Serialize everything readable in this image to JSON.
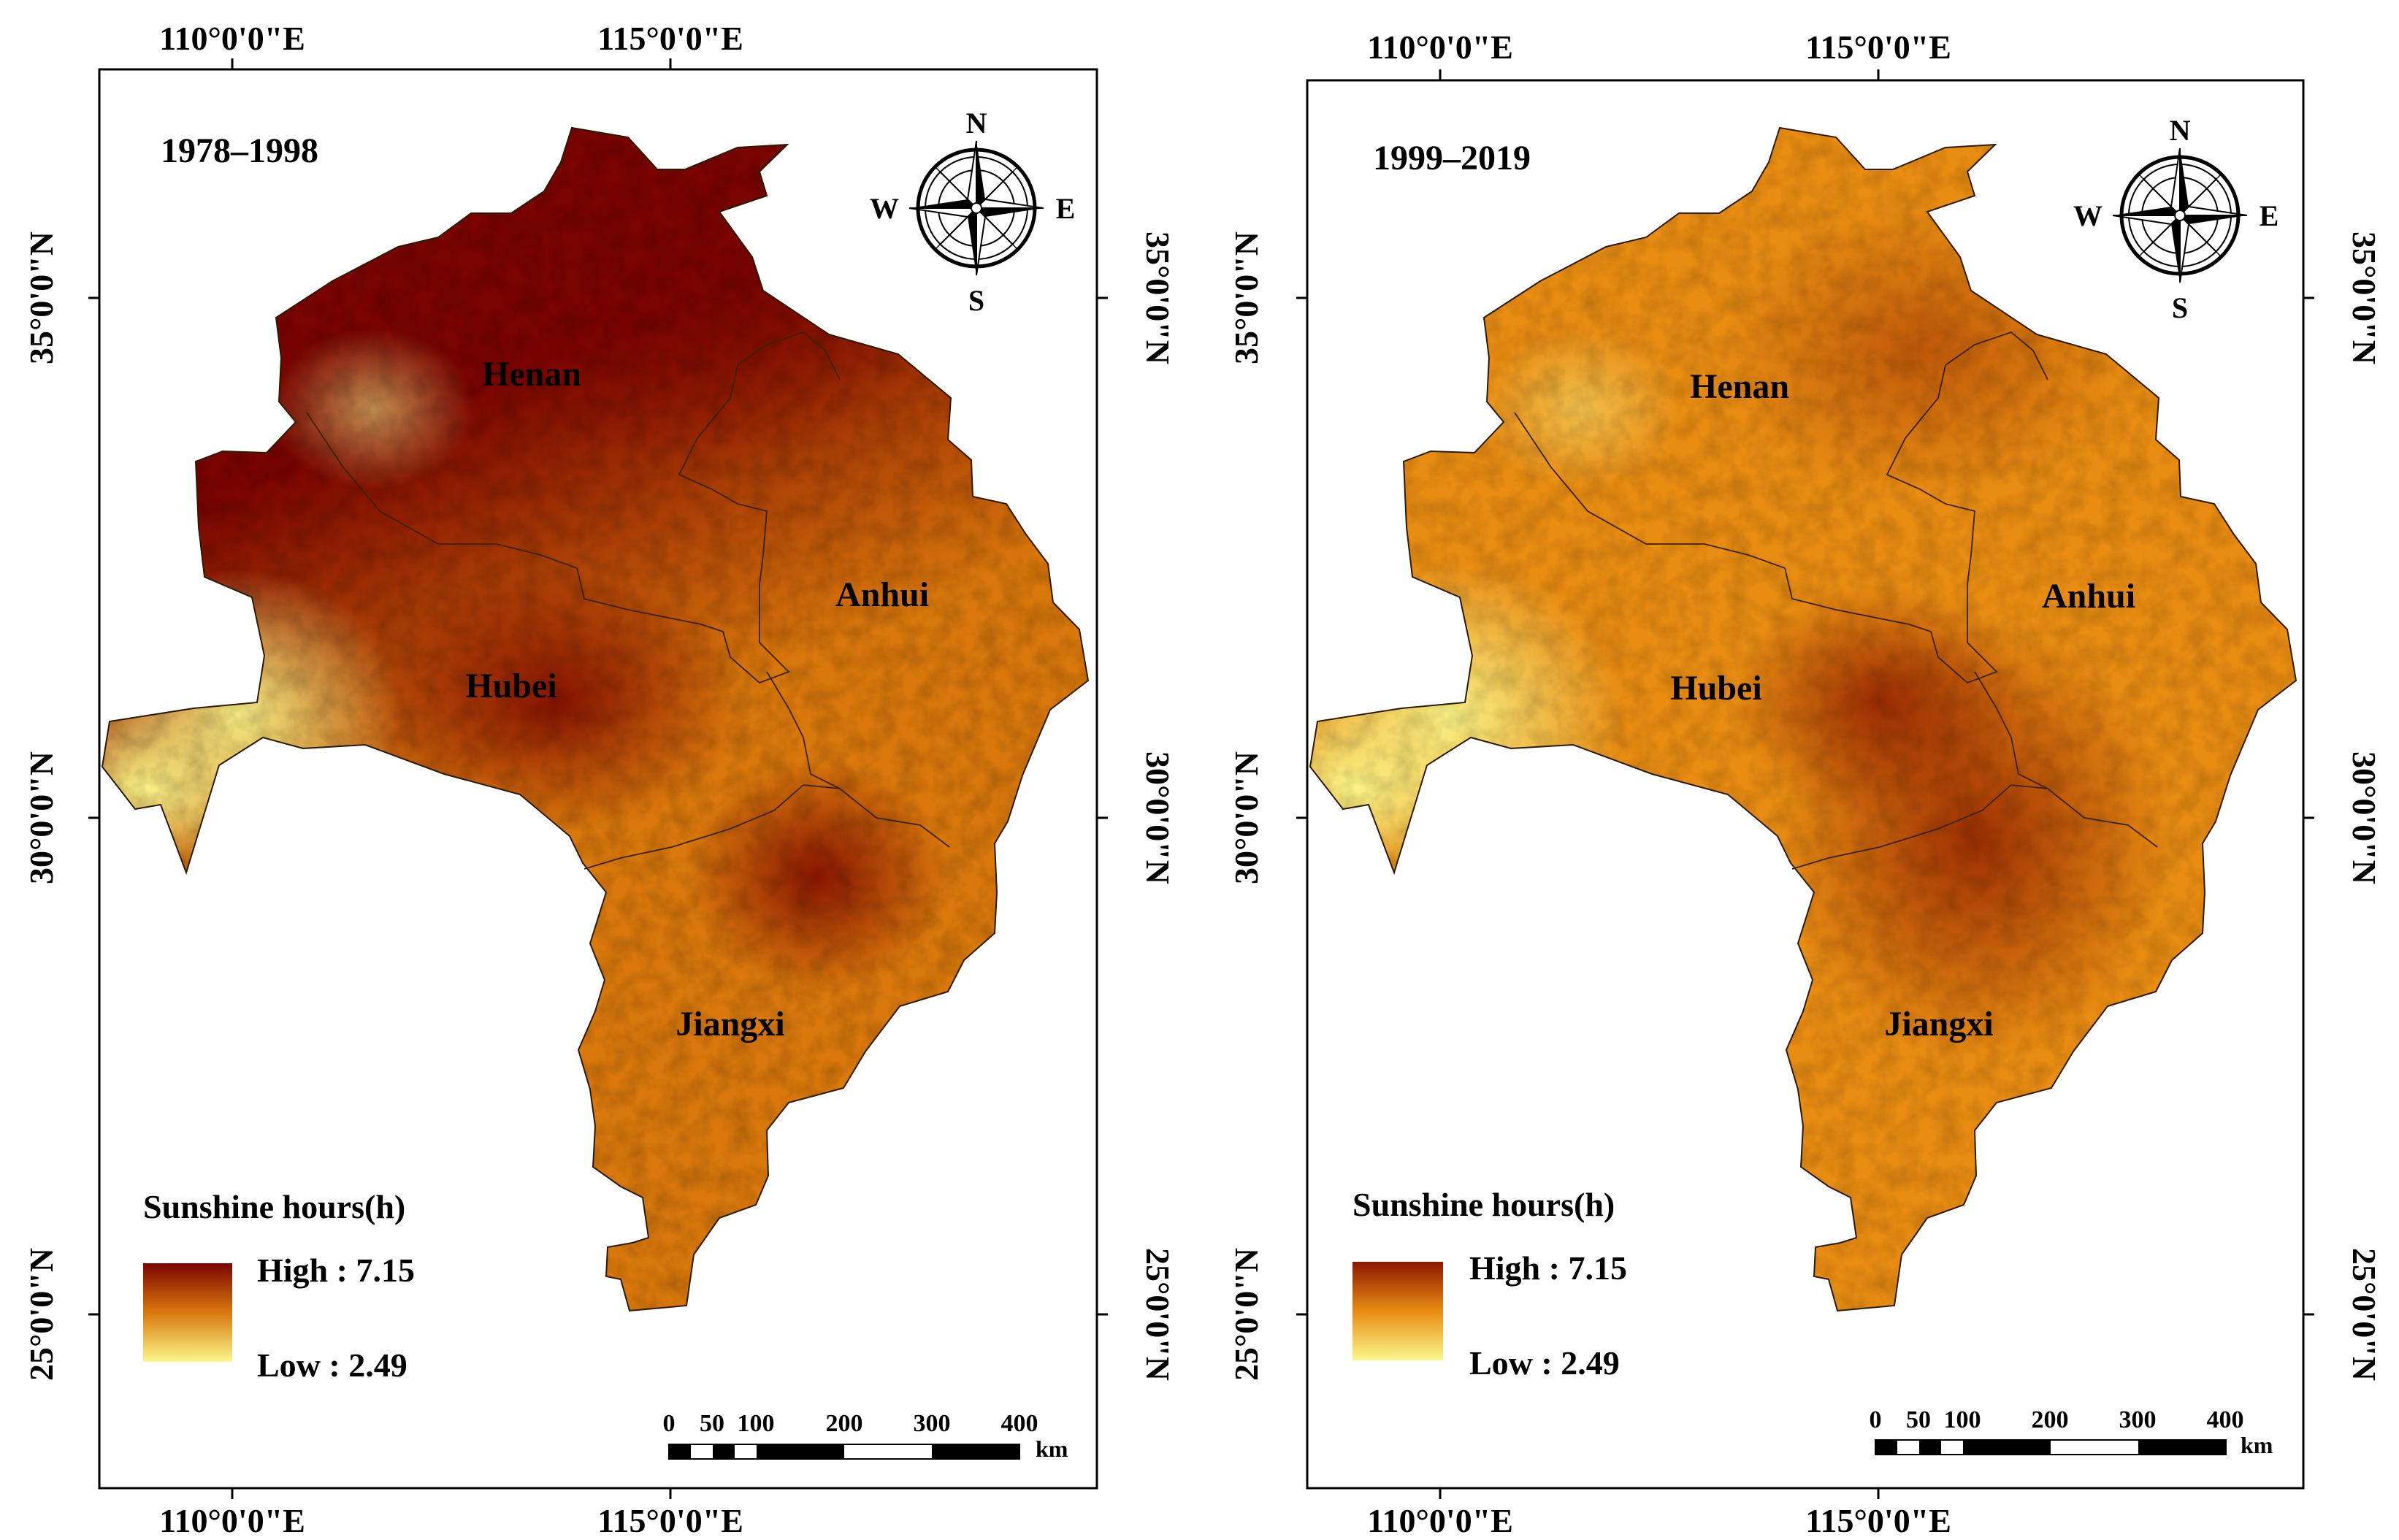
{
  "figure": {
    "panels": [
      {
        "period": "1978–1998",
        "provinces": {
          "henan": "Henan",
          "anhui": "Anhui",
          "hubei": "Hubei",
          "jiangxi": "Jiangxi"
        },
        "legend": {
          "title": "Sunshine hours(h)",
          "high": "High : 7.15",
          "low": "Low : 2.49"
        },
        "colors": {
          "high": "#7a0400",
          "mid": "#d9780c",
          "low": "#fbf88c"
        }
      },
      {
        "period": "1999–2019",
        "provinces": {
          "henan": "Henan",
          "anhui": "Anhui",
          "hubei": "Hubei",
          "jiangxi": "Jiangxi"
        },
        "legend": {
          "title": "Sunshine hours(h)",
          "high": "High : 7.15",
          "low": "Low : 2.49"
        },
        "colors": {
          "high": "#8a1800",
          "mid": "#e88c12",
          "low": "#fbf88c"
        }
      }
    ],
    "longitude_labels": [
      "110°0'0\"E",
      "115°0'0\"E"
    ],
    "latitude_labels": [
      "35°0'0\"N",
      "30°0'0\"N",
      "25°0'0\"N"
    ],
    "compass": {
      "north": "N",
      "south": "S",
      "east": "E",
      "west": "W"
    },
    "scale_bar": {
      "ticks": [
        "0",
        "50",
        "100",
        "200",
        "300",
        "400"
      ],
      "unit": "km"
    }
  }
}
